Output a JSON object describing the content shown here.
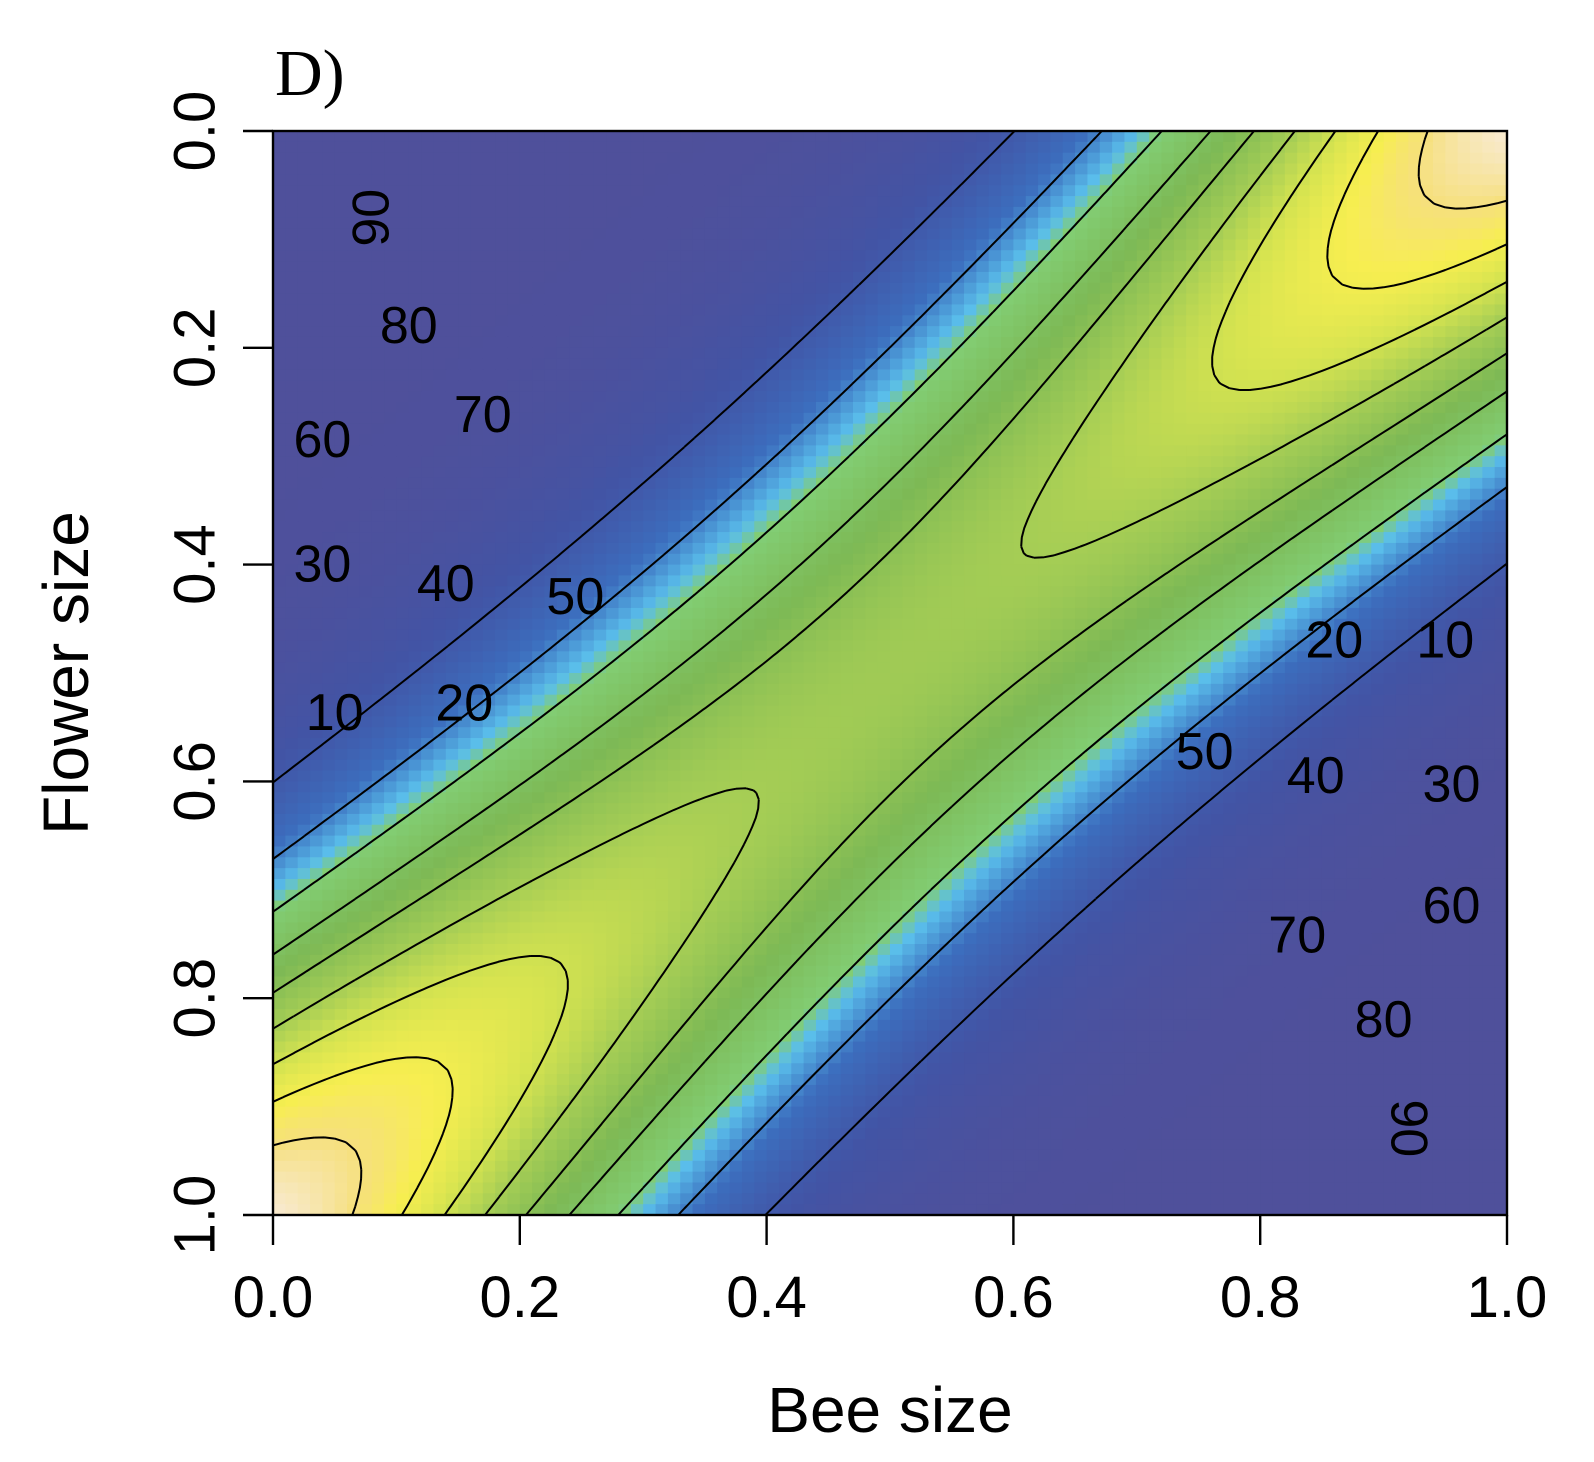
{
  "chart_data": {
    "type": "heatmap",
    "panel_label": "D)",
    "xlabel": "Bee size",
    "ylabel": "Flower size",
    "xlim": [
      0.0,
      1.0
    ],
    "ylim": [
      0.0,
      1.0
    ],
    "y_axis_inverted": true,
    "x_ticks": [
      "0.0",
      "0.2",
      "0.4",
      "0.6",
      "0.8",
      "1.0"
    ],
    "y_ticks": [
      "0.0",
      "0.2",
      "0.4",
      "0.6",
      "0.8",
      "1.0"
    ],
    "contour_levels": [
      10,
      20,
      30,
      40,
      50,
      60,
      70,
      80,
      90
    ],
    "contour_labels": [
      {
        "text": "90",
        "x": 0.08,
        "y": 0.08,
        "rotate": -90
      },
      {
        "text": "80",
        "x": 0.11,
        "y": 0.18
      },
      {
        "text": "70",
        "x": 0.17,
        "y": 0.262
      },
      {
        "text": "60",
        "x": 0.04,
        "y": 0.285
      },
      {
        "text": "30",
        "x": 0.04,
        "y": 0.4
      },
      {
        "text": "40",
        "x": 0.14,
        "y": 0.418
      },
      {
        "text": "50",
        "x": 0.245,
        "y": 0.43
      },
      {
        "text": "20",
        "x": 0.155,
        "y": 0.528
      },
      {
        "text": "10",
        "x": 0.05,
        "y": 0.537
      },
      {
        "text": "10",
        "x": 0.95,
        "y": 0.47
      },
      {
        "text": "20",
        "x": 0.86,
        "y": 0.47
      },
      {
        "text": "50",
        "x": 0.755,
        "y": 0.573
      },
      {
        "text": "40",
        "x": 0.845,
        "y": 0.595
      },
      {
        "text": "30",
        "x": 0.955,
        "y": 0.603
      },
      {
        "text": "60",
        "x": 0.955,
        "y": 0.715
      },
      {
        "text": "70",
        "x": 0.83,
        "y": 0.742
      },
      {
        "text": "80",
        "x": 0.9,
        "y": 0.82
      },
      {
        "text": "90",
        "x": 0.92,
        "y": 0.92,
        "rotate": 90
      }
    ]
  }
}
